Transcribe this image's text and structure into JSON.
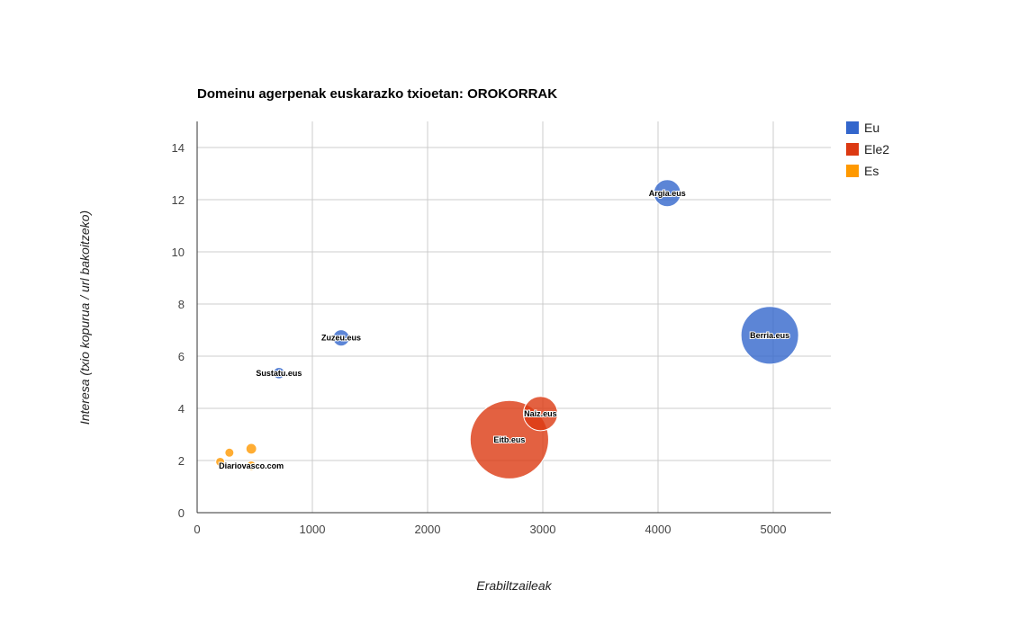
{
  "chart_data": {
    "type": "scatter",
    "title": "Domeinu agerpenak euskarazko txioetan: OROKORRAK",
    "xlabel": "Erabiltzaileak",
    "ylabel": "Interesa (txio kopurua / url bakoitzeko)",
    "xlim": [
      0,
      5500
    ],
    "ylim": [
      0,
      15
    ],
    "x_ticks": [
      0,
      1000,
      2000,
      3000,
      4000,
      5000
    ],
    "y_ticks": [
      0,
      2,
      4,
      6,
      8,
      10,
      12,
      14
    ],
    "grid": true,
    "legend_position": "right",
    "series": [
      {
        "name": "Eu",
        "color": "#3366cc",
        "points": [
          {
            "x": 4080,
            "y": 12.25,
            "size": 900,
            "label": "Argia.eus"
          },
          {
            "x": 4970,
            "y": 6.8,
            "size": 4100,
            "label": "Berria.eus"
          },
          {
            "x": 1250,
            "y": 6.7,
            "size": 330,
            "label": "Zuzeu.eus"
          },
          {
            "x": 710,
            "y": 5.35,
            "size": 160,
            "label": "Sustatu.eus"
          }
        ]
      },
      {
        "name": "Ele2",
        "color": "#dc3912",
        "points": [
          {
            "x": 2980,
            "y": 3.8,
            "size": 1450,
            "label": "Naiz.eus"
          },
          {
            "x": 2710,
            "y": 2.8,
            "size": 7600,
            "label": "Eitb.eus"
          }
        ]
      },
      {
        "name": "Es",
        "color": "#ff9900",
        "points": [
          {
            "x": 200,
            "y": 1.95,
            "size": 100,
            "label": ""
          },
          {
            "x": 280,
            "y": 2.3,
            "size": 100,
            "label": ""
          },
          {
            "x": 470,
            "y": 2.45,
            "size": 140,
            "label": ""
          },
          {
            "x": 470,
            "y": 1.8,
            "size": 110,
            "label": "Diariovasco.com"
          }
        ]
      }
    ]
  }
}
